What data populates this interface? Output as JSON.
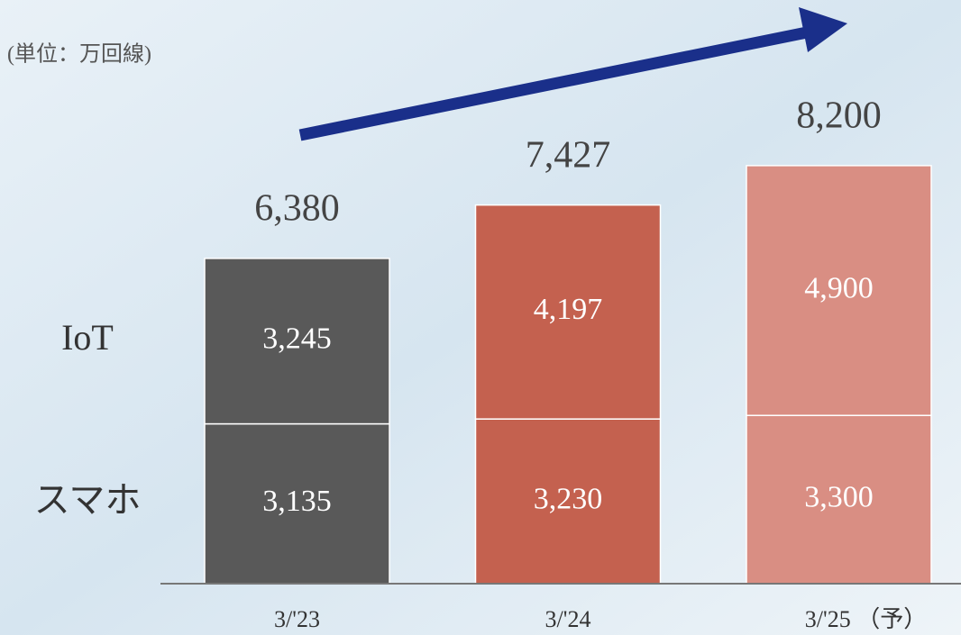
{
  "chart_data": {
    "type": "bar",
    "stacked": true,
    "unit_label": "(単位：万回線)",
    "categories": [
      "3/'23",
      "3/'24",
      "3/'25 （予）"
    ],
    "colors": [
      "#595959",
      "#c4614f",
      "#d98e83"
    ],
    "series": [
      {
        "name": "スマホ",
        "values": [
          3135,
          3230,
          3300
        ],
        "value_labels": [
          "3,135",
          "3,230",
          "3,300"
        ]
      },
      {
        "name": "IoT",
        "values": [
          3245,
          4197,
          4900
        ],
        "value_labels": [
          "3,245",
          "4,197",
          "4,900"
        ]
      }
    ],
    "totals": [
      6380,
      7427,
      8200
    ],
    "total_labels": [
      "6,380",
      "7,427",
      "8,200"
    ],
    "ylim": [
      0,
      10000
    ]
  }
}
